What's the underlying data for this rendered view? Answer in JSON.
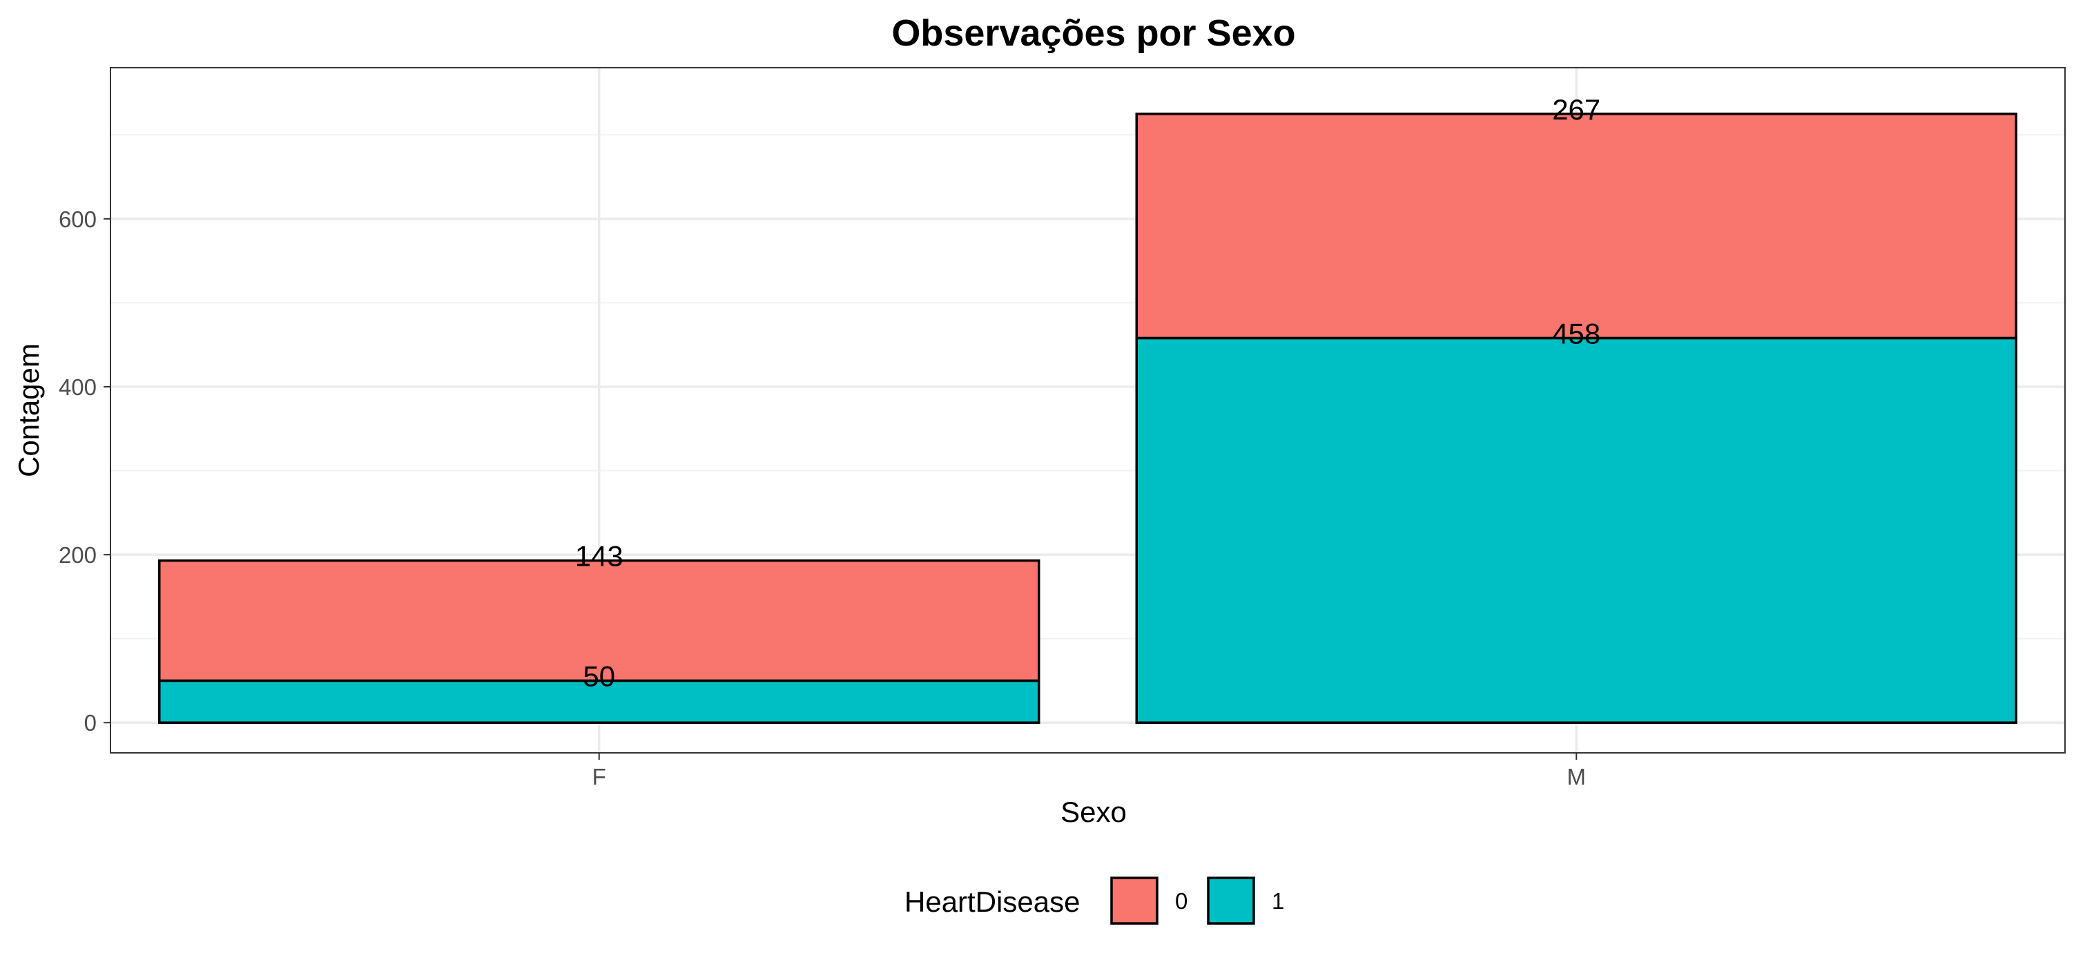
{
  "chart_data": {
    "type": "bar",
    "stacked": true,
    "title": "Observações por Sexo",
    "xlabel": "Sexo",
    "ylabel": "Contagem",
    "categories": [
      "F",
      "M"
    ],
    "series": [
      {
        "name": "0",
        "values": [
          143,
          267
        ],
        "color": "#F8766D"
      },
      {
        "name": "1",
        "values": [
          50,
          458
        ],
        "color": "#00BFC4"
      }
    ],
    "ylim": [
      -36,
      780
    ],
    "yticks": [
      0,
      200,
      400,
      600
    ],
    "grid": true,
    "legend": {
      "title": "HeartDisease",
      "position": "bottom"
    }
  }
}
